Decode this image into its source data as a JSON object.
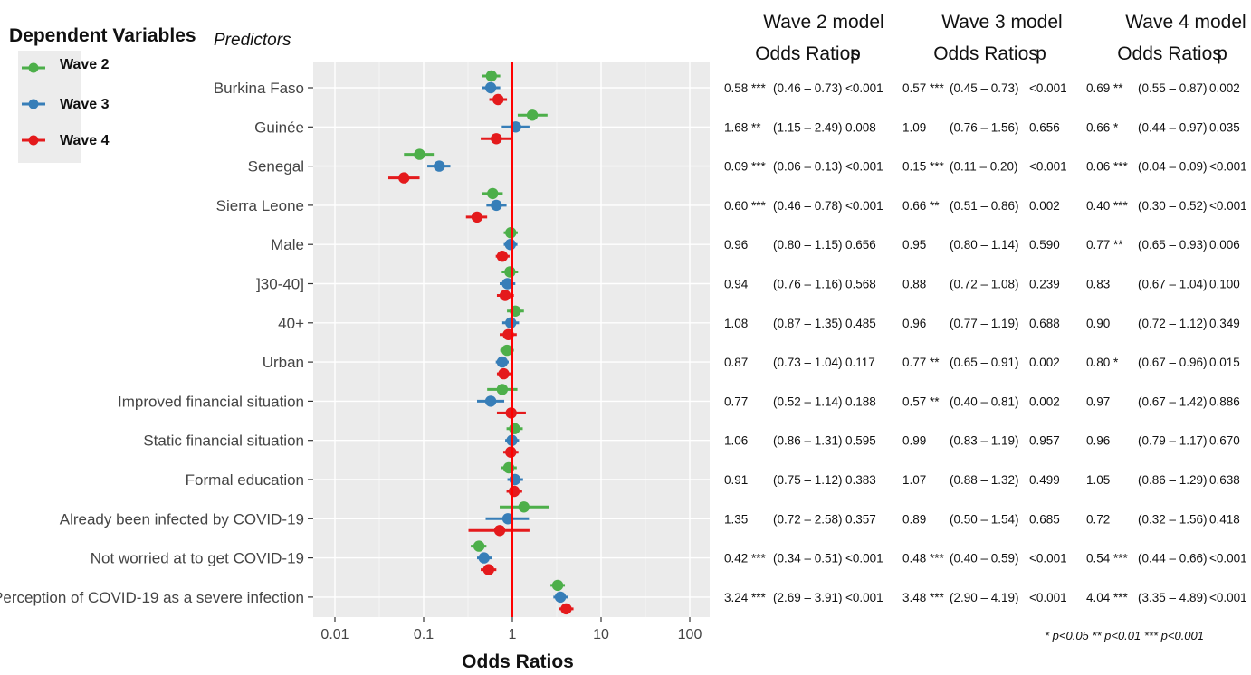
{
  "legend": {
    "title": "Dependent Variables",
    "items": [
      {
        "label": "Wave 2",
        "color": "#4daf4a"
      },
      {
        "label": "Wave 3",
        "color": "#377eb8"
      },
      {
        "label": "Wave 4",
        "color": "#e41a1c"
      }
    ]
  },
  "predictors_header": "Predictors",
  "chart_data": {
    "type": "scatter",
    "subtype": "forest-plot",
    "xlabel": "Odds Ratios",
    "xscale": "log",
    "xlim": [
      0.005,
      200
    ],
    "xticks": [
      0.01,
      0.1,
      1,
      10,
      100
    ],
    "xtick_labels": [
      "0.01",
      "0.1",
      "1",
      "10",
      "100"
    ],
    "reference_line": 1,
    "reference_color": "#ff0000",
    "grid": true,
    "legend_position": "top-left",
    "categories": [
      "Burkina Faso",
      "Guinée",
      "Senegal",
      "Sierra Leone",
      "Male",
      "]30-40]",
      "40+",
      "Urban",
      "Improved financial situation",
      "Static financial situation",
      "Formal education",
      "Already been infected by COVID-19",
      "Not worried at to get COVID-19",
      "Perception of COVID-19 as a severe infection"
    ],
    "series": [
      {
        "name": "Wave 2",
        "color": "#4daf4a",
        "values": [
          0.58,
          1.68,
          0.09,
          0.6,
          0.96,
          0.94,
          1.08,
          0.87,
          0.77,
          1.06,
          0.91,
          1.35,
          0.42,
          3.24
        ],
        "ci_low": [
          0.46,
          1.15,
          0.06,
          0.46,
          0.8,
          0.76,
          0.87,
          0.73,
          0.52,
          0.86,
          0.75,
          0.72,
          0.34,
          2.69
        ],
        "ci_high": [
          0.73,
          2.49,
          0.13,
          0.78,
          1.15,
          1.16,
          1.35,
          1.04,
          1.14,
          1.31,
          1.12,
          2.58,
          0.51,
          3.91
        ]
      },
      {
        "name": "Wave 3",
        "color": "#377eb8",
        "values": [
          0.57,
          1.09,
          0.15,
          0.66,
          0.95,
          0.88,
          0.96,
          0.77,
          0.57,
          0.99,
          1.07,
          0.89,
          0.48,
          3.48
        ],
        "ci_low": [
          0.45,
          0.76,
          0.11,
          0.51,
          0.8,
          0.72,
          0.77,
          0.65,
          0.4,
          0.83,
          0.88,
          0.5,
          0.4,
          2.9
        ],
        "ci_high": [
          0.73,
          1.56,
          0.2,
          0.86,
          1.14,
          1.08,
          1.19,
          0.91,
          0.81,
          1.19,
          1.32,
          1.54,
          0.59,
          4.19
        ]
      },
      {
        "name": "Wave 4",
        "color": "#e41a1c",
        "values": [
          0.69,
          0.66,
          0.06,
          0.4,
          0.77,
          0.83,
          0.9,
          0.8,
          0.97,
          0.96,
          1.05,
          0.72,
          0.54,
          4.04
        ],
        "ci_low": [
          0.55,
          0.44,
          0.04,
          0.3,
          0.65,
          0.67,
          0.72,
          0.67,
          0.67,
          0.79,
          0.86,
          0.32,
          0.44,
          3.35
        ],
        "ci_high": [
          0.87,
          0.97,
          0.09,
          0.52,
          0.93,
          1.04,
          1.12,
          0.96,
          1.42,
          1.17,
          1.29,
          1.56,
          0.66,
          4.89
        ]
      }
    ]
  },
  "table": {
    "models": [
      {
        "title": "Wave 2 model",
        "col_or": "Odds Ratios",
        "col_p": "p",
        "rows": [
          {
            "or": "0.58 ***",
            "ci": "(0.46 – 0.73)",
            "p": "<0.001"
          },
          {
            "or": "1.68 **",
            "ci": "(1.15 – 2.49)",
            "p": "0.008"
          },
          {
            "or": "0.09 ***",
            "ci": "(0.06 – 0.13)",
            "p": "<0.001"
          },
          {
            "or": "0.60 ***",
            "ci": "(0.46 – 0.78)",
            "p": "<0.001"
          },
          {
            "or": "0.96",
            "ci": "(0.80 – 1.15)",
            "p": "0.656"
          },
          {
            "or": "0.94",
            "ci": "(0.76 – 1.16)",
            "p": "0.568"
          },
          {
            "or": "1.08",
            "ci": "(0.87 – 1.35)",
            "p": "0.485"
          },
          {
            "or": "0.87",
            "ci": "(0.73 – 1.04)",
            "p": "0.117"
          },
          {
            "or": "0.77",
            "ci": "(0.52 – 1.14)",
            "p": "0.188"
          },
          {
            "or": "1.06",
            "ci": "(0.86 – 1.31)",
            "p": "0.595"
          },
          {
            "or": "0.91",
            "ci": "(0.75 – 1.12)",
            "p": "0.383"
          },
          {
            "or": "1.35",
            "ci": "(0.72 – 2.58)",
            "p": "0.357"
          },
          {
            "or": "0.42 ***",
            "ci": "(0.34 – 0.51)",
            "p": "<0.001"
          },
          {
            "or": "3.24 ***",
            "ci": "(2.69 – 3.91)",
            "p": "<0.001"
          }
        ]
      },
      {
        "title": "Wave 3 model",
        "col_or": "Odds Ratios",
        "col_p": "p",
        "rows": [
          {
            "or": "0.57 ***",
            "ci": "(0.45 – 0.73)",
            "p": "<0.001"
          },
          {
            "or": "1.09",
            "ci": "(0.76 – 1.56)",
            "p": "0.656"
          },
          {
            "or": "0.15 ***",
            "ci": "(0.11 – 0.20)",
            "p": "<0.001"
          },
          {
            "or": "0.66 **",
            "ci": "(0.51 – 0.86)",
            "p": "0.002"
          },
          {
            "or": "0.95",
            "ci": "(0.80 – 1.14)",
            "p": "0.590"
          },
          {
            "or": "0.88",
            "ci": "(0.72 – 1.08)",
            "p": "0.239"
          },
          {
            "or": "0.96",
            "ci": "(0.77 – 1.19)",
            "p": "0.688"
          },
          {
            "or": "0.77 **",
            "ci": "(0.65 – 0.91)",
            "p": "0.002"
          },
          {
            "or": "0.57 **",
            "ci": "(0.40 – 0.81)",
            "p": "0.002"
          },
          {
            "or": "0.99",
            "ci": "(0.83 – 1.19)",
            "p": "0.957"
          },
          {
            "or": "1.07",
            "ci": "(0.88 – 1.32)",
            "p": "0.499"
          },
          {
            "or": "0.89",
            "ci": "(0.50 – 1.54)",
            "p": "0.685"
          },
          {
            "or": "0.48 ***",
            "ci": "(0.40 – 0.59)",
            "p": "<0.001"
          },
          {
            "or": "3.48 ***",
            "ci": "(2.90 – 4.19)",
            "p": "<0.001"
          }
        ]
      },
      {
        "title": "Wave 4 model",
        "col_or": "Odds Ratios",
        "col_p": "p",
        "rows": [
          {
            "or": "0.69 **",
            "ci": "(0.55 – 0.87)",
            "p": "0.002"
          },
          {
            "or": "0.66 *",
            "ci": "(0.44 – 0.97)",
            "p": "0.035"
          },
          {
            "or": "0.06 ***",
            "ci": "(0.04 – 0.09)",
            "p": "<0.001"
          },
          {
            "or": "0.40 ***",
            "ci": "(0.30 – 0.52)",
            "p": "<0.001"
          },
          {
            "or": "0.77 **",
            "ci": "(0.65 – 0.93)",
            "p": "0.006"
          },
          {
            "or": "0.83",
            "ci": "(0.67 – 1.04)",
            "p": "0.100"
          },
          {
            "or": "0.90",
            "ci": "(0.72 – 1.12)",
            "p": "0.349"
          },
          {
            "or": "0.80 *",
            "ci": "(0.67 – 0.96)",
            "p": "0.015"
          },
          {
            "or": "0.97",
            "ci": "(0.67 – 1.42)",
            "p": "0.886"
          },
          {
            "or": "0.96",
            "ci": "(0.79 – 1.17)",
            "p": "0.670"
          },
          {
            "or": "1.05",
            "ci": "(0.86 – 1.29)",
            "p": "0.638"
          },
          {
            "or": "0.72",
            "ci": "(0.32 – 1.56)",
            "p": "0.418"
          },
          {
            "or": "0.54 ***",
            "ci": "(0.44 – 0.66)",
            "p": "<0.001"
          },
          {
            "or": "4.04 ***",
            "ci": "(3.35 – 4.89)",
            "p": "<0.001"
          }
        ]
      }
    ],
    "footnote": "* p<0.05   ** p<0.01   *** p<0.001"
  }
}
